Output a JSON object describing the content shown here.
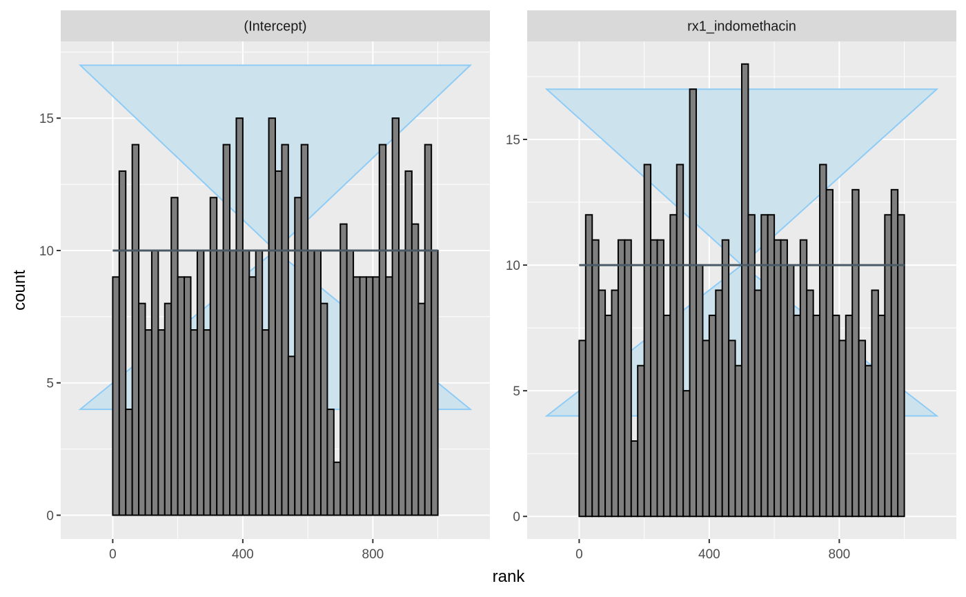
{
  "chart_data": {
    "type": "bar",
    "xlabel": "rank",
    "ylabel": "count",
    "x_breaks": [
      0,
      400,
      800
    ],
    "bin_width": 20,
    "bin_starts": [
      0,
      20,
      40,
      60,
      80,
      100,
      120,
      140,
      160,
      180,
      200,
      220,
      240,
      260,
      280,
      300,
      320,
      340,
      360,
      380,
      400,
      420,
      440,
      460,
      480,
      500,
      520,
      540,
      560,
      580,
      600,
      620,
      640,
      660,
      680,
      700,
      720,
      740,
      760,
      780,
      800,
      820,
      840,
      860,
      880,
      900,
      920,
      940,
      960,
      980
    ],
    "bar_fill": "#7f7f7f",
    "bar_outline": "#000000",
    "band_fill": "#cce3ee",
    "band_outline": "#8ecbf5",
    "mean_line": "#4a5a66",
    "panel_bg": "#ebebeb",
    "strip_bg": "#d9d9d9",
    "band": {
      "x": [
        -100,
        1100
      ],
      "lower": 4,
      "upper": 17,
      "mean": 10
    },
    "panels": [
      {
        "strip": "(Intercept)",
        "ylim": [
          -0.9,
          17.9
        ],
        "y_breaks": [
          0,
          5,
          10,
          15
        ],
        "y_tick_labels": [
          "0",
          "5",
          "10",
          "15"
        ],
        "x_tick_labels": [
          "0",
          "400",
          "800"
        ],
        "values": [
          9,
          13,
          4,
          14,
          8,
          7,
          10,
          7,
          8,
          12,
          9,
          9,
          7,
          10,
          7,
          12,
          10,
          14,
          10,
          15,
          10,
          9,
          10,
          7,
          15,
          13,
          14,
          6,
          12,
          14,
          10,
          10,
          8,
          4,
          2,
          11,
          10,
          9,
          9,
          9,
          9,
          14,
          9,
          15,
          10,
          13,
          11,
          8,
          14,
          10
        ]
      },
      {
        "strip": "rx1_indomethacin",
        "ylim": [
          -0.9,
          18.9
        ],
        "y_breaks": [
          0,
          5,
          10,
          15
        ],
        "y_tick_labels": [
          "0",
          "5",
          "10",
          "15"
        ],
        "x_tick_labels": [
          "0",
          "400",
          "800"
        ],
        "values": [
          7,
          12,
          11,
          9,
          8,
          9,
          11,
          11,
          3,
          6,
          14,
          11,
          11,
          8,
          12,
          14,
          5,
          17,
          10,
          7,
          8,
          9,
          11,
          7,
          6,
          18,
          12,
          9,
          12,
          12,
          11,
          11,
          10,
          8,
          11,
          9,
          8,
          14,
          13,
          8,
          7,
          8,
          13,
          7,
          6,
          9,
          8,
          12,
          13,
          12
        ]
      }
    ]
  }
}
